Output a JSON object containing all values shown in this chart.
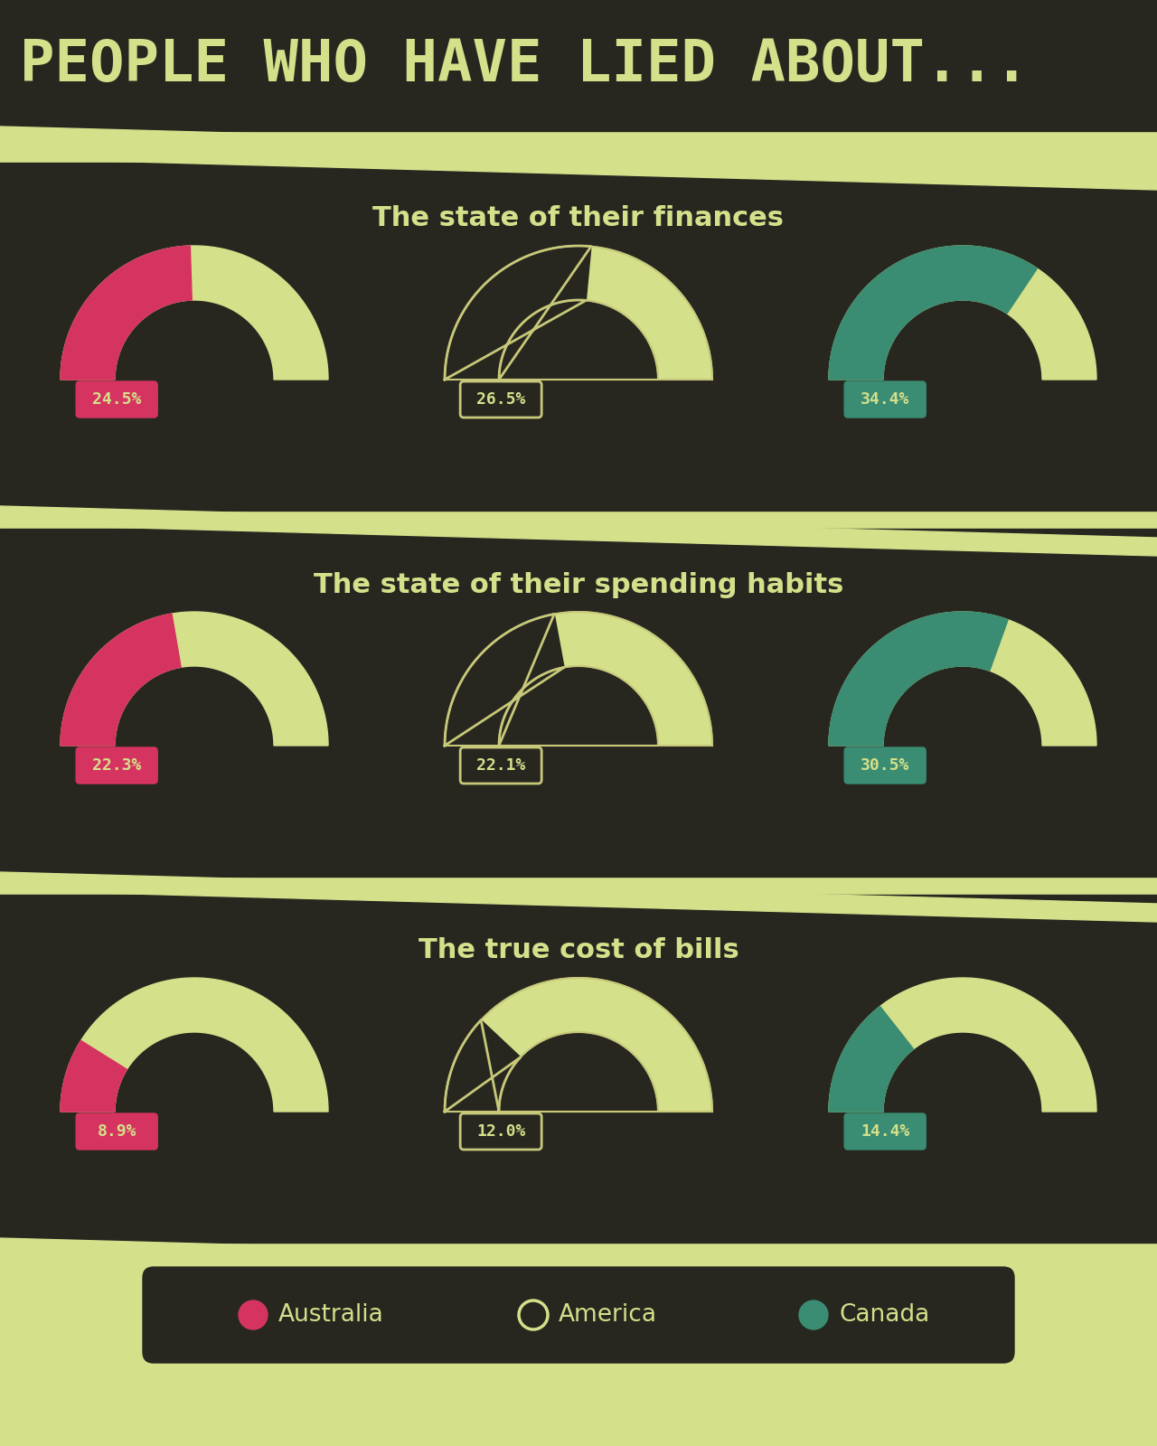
{
  "title": "PEOPLE WHO HAVE LIED ABOUT...",
  "bg_dark": "#272720",
  "bg_light": "#d4e08a",
  "sections": [
    {
      "title": "The state of their finances",
      "values": [
        24.5,
        26.5,
        34.4
      ],
      "labels": [
        "24.5%",
        "26.5%",
        "34.4%"
      ]
    },
    {
      "title": "The state of their spending habits",
      "values": [
        22.3,
        22.1,
        30.5
      ],
      "labels": [
        "22.3%",
        "22.1%",
        "30.5%"
      ]
    },
    {
      "title": "The true cost of bills",
      "values": [
        8.9,
        12.0,
        14.4
      ],
      "labels": [
        "8.9%",
        "12.0%",
        "14.4%"
      ]
    }
  ],
  "countries": [
    "Australia",
    "America",
    "Canada"
  ],
  "colors": {
    "australia": "#d63460",
    "america_outline": "#c8c87a",
    "canada": "#3a8c72",
    "text_light": "#d4e08a"
  }
}
